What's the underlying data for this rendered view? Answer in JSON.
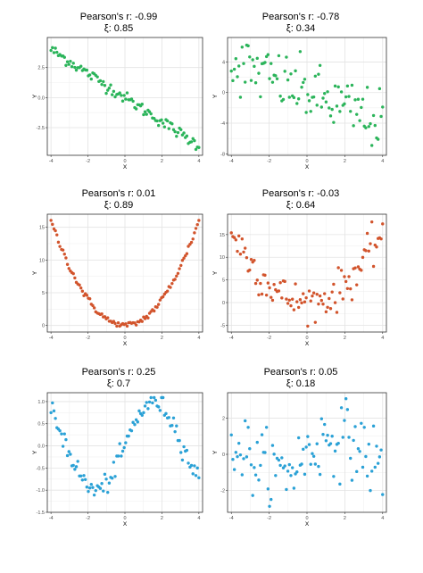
{
  "chart_data": [
    {
      "type": "scatter",
      "title": "Pearson's r: -0.99",
      "subtitle": "ξ: 0.85",
      "xlabel": "X",
      "ylabel": "Y",
      "xlim": [
        -4.2,
        4.2
      ],
      "ylim": [
        -4.8,
        5.0
      ],
      "xticks": [
        "-4",
        "-2",
        "0",
        "2",
        "4"
      ],
      "xtick_values": [
        -4,
        -2,
        0,
        2,
        4
      ],
      "yticks": [
        "-2.5",
        "0.0",
        "2.5"
      ],
      "ytick_values": [
        -2.5,
        0,
        2.5
      ],
      "color": "#2bb45a",
      "grid": true,
      "pattern": "linear_neg",
      "x": [],
      "y": []
    },
    {
      "type": "scatter",
      "title": "Pearson's r: -0.78",
      "subtitle": "ξ: 0.34",
      "xlabel": "X",
      "ylabel": "Y",
      "xlim": [
        -4.2,
        4.2
      ],
      "ylim": [
        -8.2,
        7.2
      ],
      "xticks": [
        "-4",
        "-2",
        "0",
        "2",
        "4"
      ],
      "xtick_values": [
        -4,
        -2,
        0,
        2,
        4
      ],
      "yticks": [
        "-8",
        "-4",
        "0",
        "4"
      ],
      "ytick_values": [
        -8,
        -4,
        0,
        4
      ],
      "color": "#2bb45a",
      "grid": true,
      "pattern": "linear_neg_noisy",
      "x": [],
      "y": []
    },
    {
      "type": "scatter",
      "title": "Pearson's r: 0.01",
      "subtitle": "ξ: 0.89",
      "xlabel": "X",
      "ylabel": "Y",
      "xlim": [
        -4.2,
        4.2
      ],
      "ylim": [
        -1.0,
        17.0
      ],
      "xticks": [
        "-4",
        "-2",
        "0",
        "2",
        "4"
      ],
      "xtick_values": [
        -4,
        -2,
        0,
        2,
        4
      ],
      "yticks": [
        "0",
        "5",
        "10",
        "15"
      ],
      "ytick_values": [
        0,
        5,
        10,
        15
      ],
      "color": "#d2542c",
      "grid": true,
      "pattern": "quadratic",
      "x": [],
      "y": []
    },
    {
      "type": "scatter",
      "title": "Pearson's r: -0.03",
      "subtitle": "ξ: 0.64",
      "xlabel": "X",
      "ylabel": "Y",
      "xlim": [
        -4.2,
        4.2
      ],
      "ylim": [
        -6.5,
        19.5
      ],
      "xticks": [
        "-4",
        "-2",
        "0",
        "2",
        "4"
      ],
      "xtick_values": [
        -4,
        -2,
        0,
        2,
        4
      ],
      "yticks": [
        "-5",
        "0",
        "5",
        "10",
        "15"
      ],
      "ytick_values": [
        -5,
        0,
        5,
        10,
        15
      ],
      "color": "#d2542c",
      "grid": true,
      "pattern": "quadratic_noisy",
      "x": [],
      "y": []
    },
    {
      "type": "scatter",
      "title": "Pearson's r: 0.25",
      "subtitle": "ξ: 0.7",
      "xlabel": "X",
      "ylabel": "Y",
      "xlim": [
        -4.2,
        4.2
      ],
      "ylim": [
        -1.5,
        1.2
      ],
      "xticks": [
        "-4",
        "-2",
        "0",
        "2",
        "4"
      ],
      "xtick_values": [
        -4,
        -2,
        0,
        2,
        4
      ],
      "yticks": [
        "-1.5",
        "-1.0",
        "-0.5",
        "0.0",
        "0.5",
        "1.0"
      ],
      "ytick_values": [
        -1.5,
        -1.0,
        -0.5,
        0,
        0.5,
        1.0
      ],
      "color": "#2aa1d6",
      "grid": true,
      "pattern": "sine",
      "x": [],
      "y": []
    },
    {
      "type": "scatter",
      "title": "Pearson's r: 0.05",
      "subtitle": "ξ: 0.18",
      "xlabel": "X",
      "ylabel": "Y",
      "xlim": [
        -4.2,
        4.2
      ],
      "ylim": [
        -3.2,
        3.4
      ],
      "xticks": [
        "-4",
        "-2",
        "0",
        "2",
        "4"
      ],
      "xtick_values": [
        -4,
        -2,
        0,
        2,
        4
      ],
      "yticks": [
        "-2",
        "0",
        "2"
      ],
      "ytick_values": [
        -2,
        0,
        2
      ],
      "color": "#2aa1d6",
      "grid": true,
      "pattern": "sine_noisy",
      "x": [],
      "y": []
    }
  ]
}
